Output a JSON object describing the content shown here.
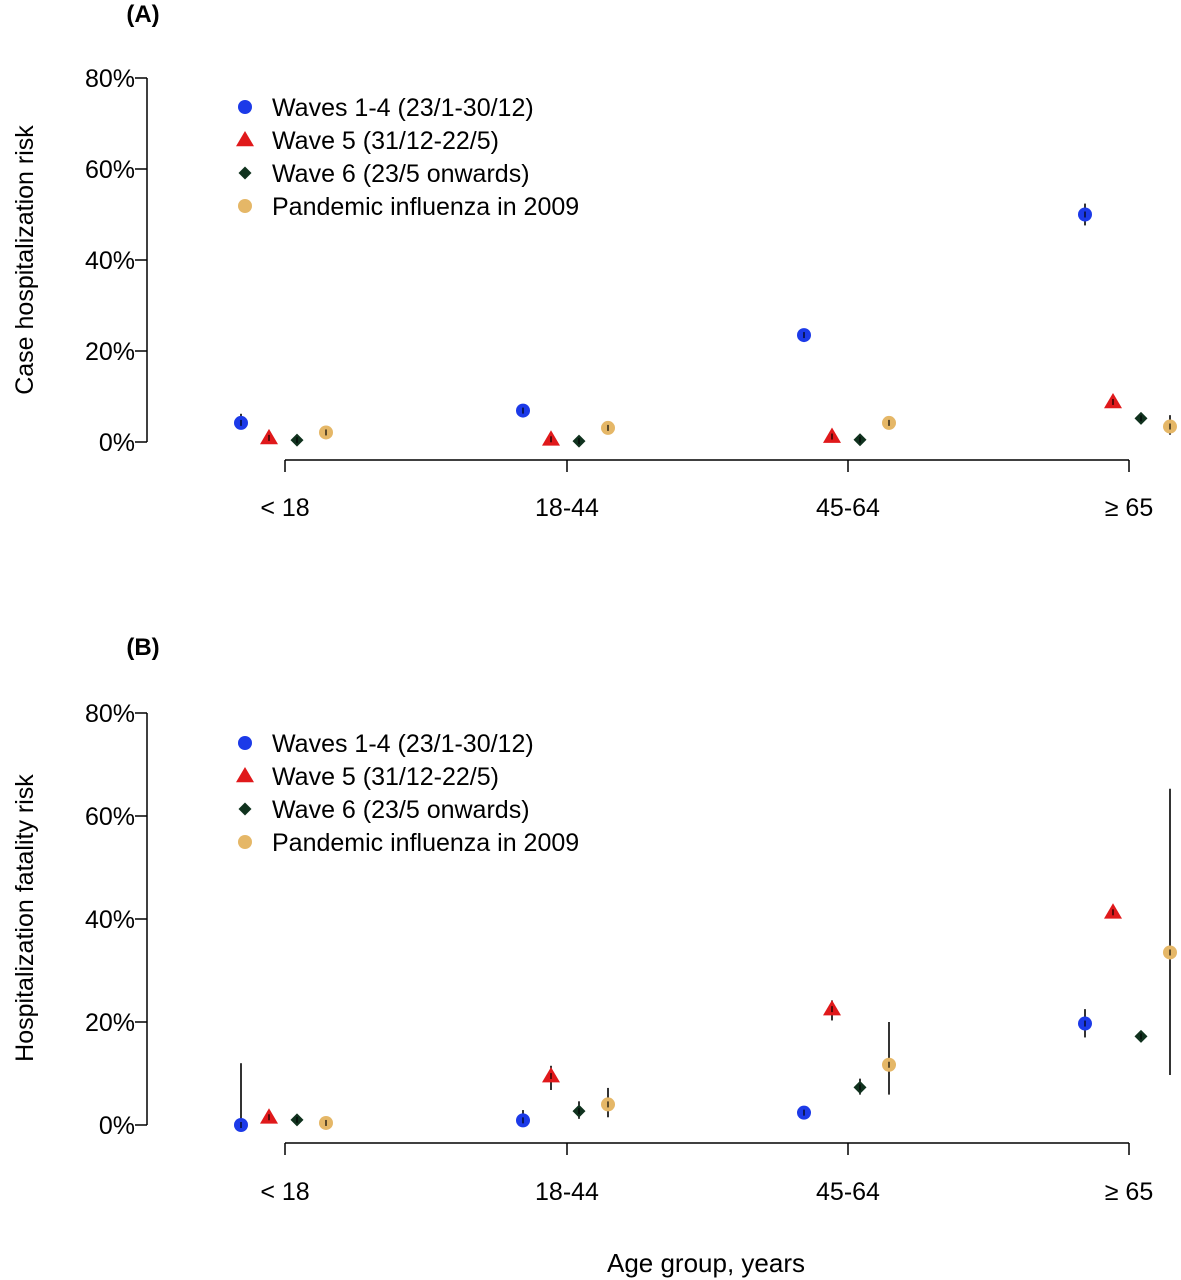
{
  "figure": {
    "xlabel": "Age group, years"
  },
  "legend_entries": [
    {
      "name": "Waves 1-4 (23/1-30/12)",
      "color": "#1c3ae8",
      "shape": "circle"
    },
    {
      "name": "Wave 5 (31/12-22/5)",
      "color": "#e0191b",
      "shape": "triangle"
    },
    {
      "name": "Wave 6 (23/5 onwards)",
      "color": "#10321e",
      "shape": "diamond"
    },
    {
      "name": "Pandemic influenza in 2009",
      "color": "#e5b767",
      "shape": "circle"
    }
  ],
  "chart_data": [
    {
      "type": "scatter",
      "panel_label": "(A)",
      "title": "",
      "xlabel": "",
      "ylabel": "Case hospitalization risk",
      "categories": [
        "< 18",
        "18-44",
        "45-64",
        "≥ 65"
      ],
      "y_ticks": [
        "0%",
        "20%",
        "40%",
        "60%",
        "80%"
      ],
      "ylim": [
        0,
        80
      ],
      "legend_position": "top-left",
      "grid": false,
      "series": [
        {
          "name": "Waves 1-4 (23/1-30/12)",
          "values": [
            4.2,
            6.9,
            23.5,
            50.0
          ],
          "ci_low": [
            3.0,
            6.3,
            22.4,
            47.6
          ],
          "ci_high": [
            6.2,
            7.6,
            24.8,
            52.4
          ]
        },
        {
          "name": "Wave 5 (31/12-22/5)",
          "values": [
            0.9,
            0.6,
            1.2,
            8.8
          ],
          "ci_low": [
            0.7,
            0.5,
            0.9,
            7.9
          ],
          "ci_high": [
            1.1,
            0.7,
            1.5,
            9.7
          ]
        },
        {
          "name": "Wave 6 (23/5 onwards)",
          "values": [
            0.4,
            0.2,
            0.5,
            5.2
          ],
          "ci_low": [
            0.3,
            0.15,
            0.4,
            4.7
          ],
          "ci_high": [
            0.5,
            0.25,
            0.6,
            5.7
          ]
        },
        {
          "name": "Pandemic influenza in 2009",
          "values": [
            2.1,
            3.1,
            4.2,
            3.4
          ],
          "ci_low": [
            1.8,
            2.7,
            3.0,
            1.6
          ],
          "ci_high": [
            2.4,
            3.5,
            5.4,
            5.9
          ]
        }
      ]
    },
    {
      "type": "scatter",
      "panel_label": "(B)",
      "title": "",
      "xlabel": "Age group, years",
      "ylabel": "Hospitalization fatality risk",
      "categories": [
        "< 18",
        "18-44",
        "45-64",
        "≥ 65"
      ],
      "y_ticks": [
        "0%",
        "20%",
        "40%",
        "60%",
        "80%"
      ],
      "ylim": [
        0,
        80
      ],
      "legend_position": "top-left",
      "grid": false,
      "series": [
        {
          "name": "Waves 1-4 (23/1-30/12)",
          "values": [
            0.0,
            0.9,
            2.4,
            19.7
          ],
          "ci_low": [
            0.0,
            0.3,
            1.7,
            17.0
          ],
          "ci_high": [
            12.0,
            2.9,
            3.3,
            22.5
          ]
        },
        {
          "name": "Wave 5 (31/12-22/5)",
          "values": [
            1.5,
            9.5,
            22.5,
            41.3
          ],
          "ci_low": [
            0.9,
            6.8,
            20.3,
            40.3
          ],
          "ci_high": [
            2.3,
            11.5,
            24.2,
            42.4
          ]
        },
        {
          "name": "Wave 6 (23/5 onwards)",
          "values": [
            1.0,
            2.7,
            7.3,
            17.2
          ],
          "ci_low": [
            0.4,
            1.2,
            5.9,
            16.4
          ],
          "ci_high": [
            1.8,
            4.6,
            9.0,
            18.0
          ]
        },
        {
          "name": "Pandemic influenza in 2009",
          "values": [
            0.4,
            4.0,
            11.7,
            33.5
          ],
          "ci_low": [
            0.0,
            1.5,
            5.9,
            9.7
          ],
          "ci_high": [
            1.1,
            7.2,
            20.0,
            65.3
          ]
        }
      ]
    }
  ]
}
